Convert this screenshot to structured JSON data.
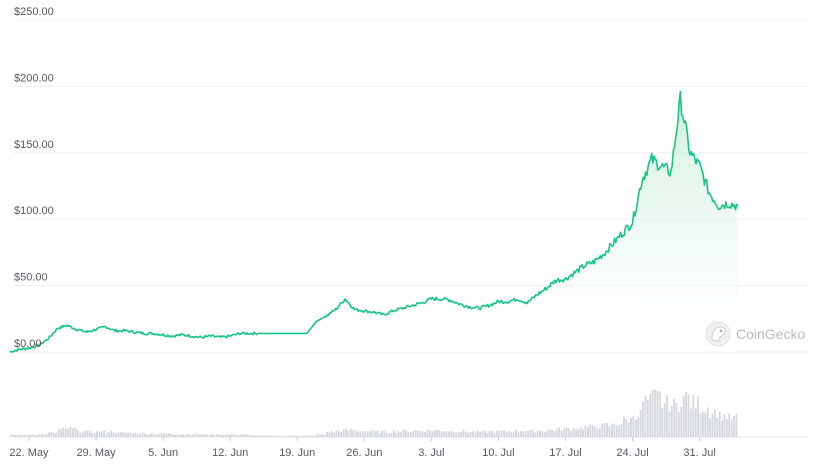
{
  "chart_data": {
    "type": "area",
    "title": "",
    "xlabel": "",
    "ylabel": "",
    "ylim": [
      0,
      250
    ],
    "grid": true,
    "y_ticks": [
      "$0.00",
      "$50.00",
      "$100.00",
      "$150.00",
      "$200.00",
      "$250.00"
    ],
    "y_tick_values": [
      0,
      50,
      100,
      150,
      200,
      250
    ],
    "x_ticks": [
      "22. May",
      "29. May",
      "5. Jun",
      "12. Jun",
      "19. Jun",
      "26. Jun",
      "3. Jul",
      "10. Jul",
      "17. Jul",
      "24. Jul",
      "31. Jul"
    ],
    "x_tick_days": [
      0,
      7,
      14,
      21,
      28,
      35,
      42,
      49,
      56,
      63,
      70
    ],
    "series": [
      {
        "color": "#16c784",
        "x": [
          -2,
          -1,
          0,
          1,
          2,
          3,
          4,
          5,
          6,
          7,
          8,
          9,
          10,
          11,
          12,
          13,
          14,
          15,
          16,
          17,
          18,
          19,
          20,
          21,
          22,
          23,
          24,
          25,
          26,
          27,
          28,
          29,
          30,
          31,
          32,
          33,
          34,
          35,
          36,
          37,
          38,
          39,
          40,
          41,
          42,
          43,
          44,
          45,
          46,
          47,
          48,
          49,
          50,
          51,
          52,
          53,
          54,
          55,
          56,
          57,
          58,
          59,
          60,
          61,
          62,
          63,
          64,
          65,
          66,
          67,
          68,
          69,
          70,
          71,
          72,
          73,
          74
        ],
        "values": [
          0,
          2,
          3,
          5,
          10,
          18,
          20,
          17,
          15,
          17,
          19,
          16,
          16,
          15,
          14,
          14,
          13,
          12,
          13,
          12,
          11,
          12,
          11,
          12,
          14,
          14,
          14,
          14,
          14,
          14,
          14,
          14,
          23,
          27,
          32,
          40,
          32,
          31,
          30,
          28,
          31,
          33,
          35,
          37,
          40,
          40,
          39,
          36,
          34,
          33,
          35,
          38,
          38,
          40,
          37,
          43,
          48,
          54,
          55,
          60,
          65,
          68,
          74,
          82,
          90,
          98,
          130,
          145,
          140,
          135,
          190,
          150,
          140,
          120,
          110,
          112,
          110
        ],
        "volume": [
          0.05,
          0.05,
          0.06,
          0.07,
          0.1,
          0.18,
          0.2,
          0.14,
          0.12,
          0.13,
          0.13,
          0.1,
          0.1,
          0.09,
          0.08,
          0.08,
          0.08,
          0.07,
          0.07,
          0.07,
          0.06,
          0.06,
          0.06,
          0.06,
          0.06,
          0.04,
          0.03,
          0.03,
          0.03,
          0.03,
          0.03,
          0.03,
          0.06,
          0.12,
          0.15,
          0.17,
          0.15,
          0.14,
          0.13,
          0.12,
          0.13,
          0.14,
          0.15,
          0.15,
          0.16,
          0.15,
          0.14,
          0.13,
          0.12,
          0.12,
          0.13,
          0.14,
          0.14,
          0.15,
          0.14,
          0.15,
          0.17,
          0.19,
          0.2,
          0.22,
          0.24,
          0.26,
          0.28,
          0.32,
          0.4,
          0.55,
          0.85,
          0.95,
          0.8,
          0.75,
          0.95,
          0.8,
          0.7,
          0.6,
          0.5,
          0.45,
          0.42
        ]
      }
    ]
  },
  "watermark": {
    "text": "CoinGecko",
    "icon": "gecko-logo-icon"
  },
  "colors": {
    "line": "#16c784",
    "fill_top": "#c9eed9",
    "fill_bottom": "#ffffff",
    "volume": "#d4d7dc",
    "grid": "#eef0f3",
    "text": "#555b66"
  }
}
